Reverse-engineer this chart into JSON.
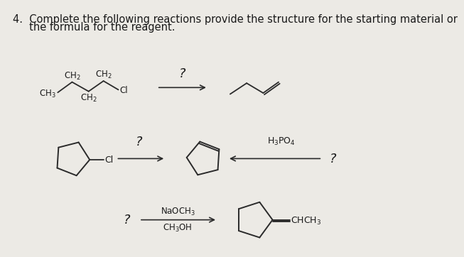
{
  "bg_color": "#eceae5",
  "text_color": "#1a1a1a",
  "line_color": "#2a2a2a",
  "title_line1": "4.  Complete the following reactions provide the structure for the starting material or",
  "title_line2": "     the formula for the reagent.",
  "font_size_title": 10.5,
  "font_size_label": 8.5,
  "font_size_question": 13
}
